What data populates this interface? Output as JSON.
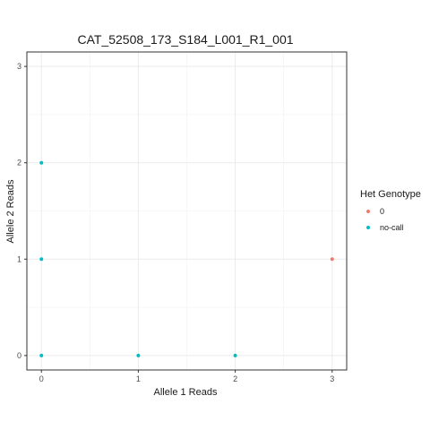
{
  "chart_data": {
    "type": "scatter",
    "title": "CAT_52508_173_S184_L001_R1_001",
    "xlabel": "Allele 1 Reads",
    "ylabel": "Allele 2 Reads",
    "xlim": [
      -0.15,
      3.15
    ],
    "ylim": [
      -0.15,
      3.15
    ],
    "x_ticks": [
      0,
      1,
      2,
      3
    ],
    "y_ticks": [
      0,
      1,
      2,
      3
    ],
    "x_tick_labels": [
      "0",
      "1",
      "2",
      "3"
    ],
    "y_tick_labels": [
      "0",
      "1",
      "2",
      "3"
    ],
    "grid": true,
    "legend": {
      "title": "Het Genotype",
      "placement": "right"
    },
    "series": [
      {
        "name": "0",
        "color": "#F8766D",
        "points": [
          {
            "x": 3,
            "y": 1
          }
        ]
      },
      {
        "name": "no-call",
        "color": "#00BFC4",
        "points": [
          {
            "x": 0,
            "y": 2
          },
          {
            "x": 0,
            "y": 1
          },
          {
            "x": 0,
            "y": 0
          },
          {
            "x": 1,
            "y": 0
          },
          {
            "x": 2,
            "y": 0
          }
        ]
      }
    ]
  }
}
